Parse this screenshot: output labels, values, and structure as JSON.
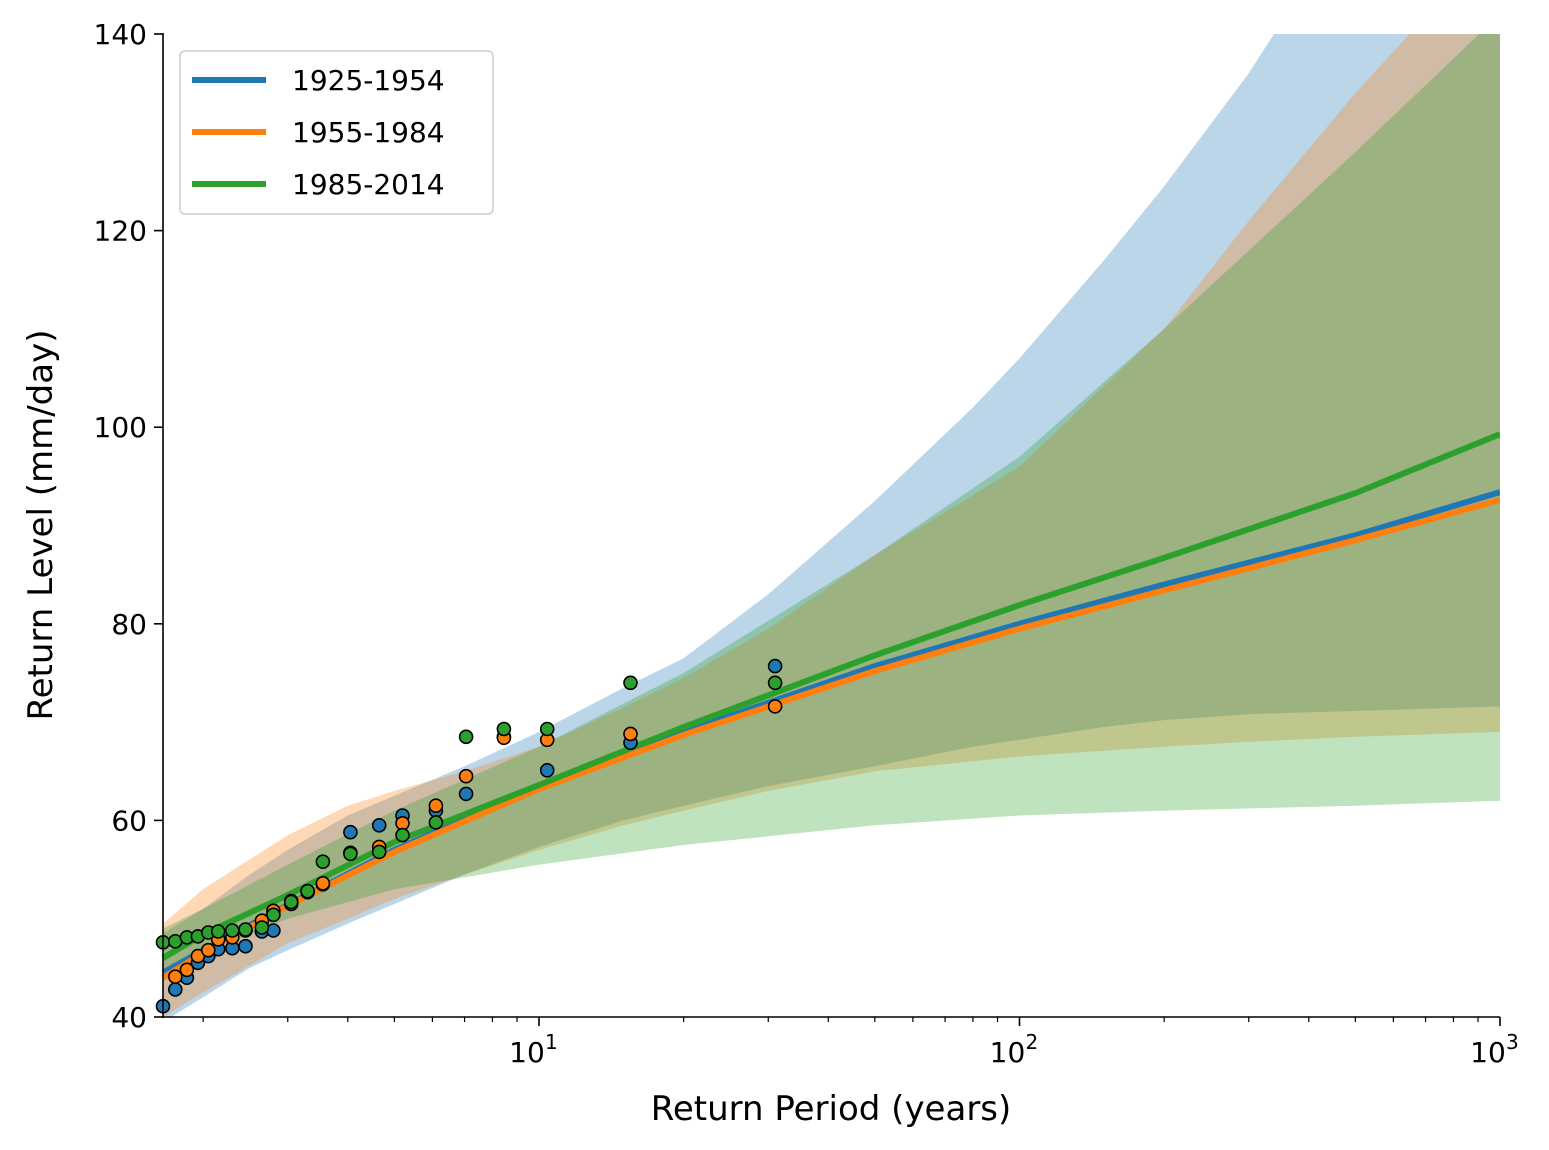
{
  "chart_data": {
    "type": "line",
    "title": "",
    "xlabel": "Return Period (years)",
    "ylabel": "Return Level (mm/day)",
    "xscale": "log",
    "xlim": [
      1.65,
      1000
    ],
    "ylim": [
      40,
      140
    ],
    "grid": false,
    "legend_position": "top-left",
    "y_ticks": [
      "40",
      "60",
      "80",
      "100",
      "120",
      "140"
    ],
    "x_ticks": [
      {
        "value": 10,
        "base": "10",
        "exp": "1"
      },
      {
        "value": 100,
        "base": "10",
        "exp": "2"
      },
      {
        "value": 1000,
        "base": "10",
        "exp": "3"
      }
    ],
    "series": [
      {
        "name": "1925-1954",
        "color": "#1f77b4",
        "fit": {
          "x": [
            1.65,
            2,
            3,
            5,
            10,
            20,
            50,
            100,
            200,
            500,
            1000
          ],
          "y": [
            44.5,
            46.8,
            51.4,
            57.0,
            63.4,
            69.0,
            75.7,
            80.0,
            84.0,
            89.0,
            93.4
          ]
        },
        "band": {
          "x": [
            1.65,
            2,
            2.5,
            3,
            4,
            5,
            7,
            10,
            15,
            20,
            30,
            50,
            80,
            100,
            150,
            200,
            300,
            1000
          ],
          "lower": [
            39.5,
            42.0,
            45.0,
            46.8,
            49.5,
            51.5,
            54.5,
            57.3,
            60.0,
            61.5,
            63.5,
            65.5,
            67.5,
            68.2,
            69.5,
            70.2,
            70.8,
            71.6
          ],
          "upper": [
            48.5,
            51.0,
            54.5,
            57.0,
            60.5,
            62.5,
            65.5,
            69.0,
            73.5,
            76.5,
            83.0,
            92.5,
            102.0,
            107.0,
            117.0,
            124.5,
            136.0,
            176.0
          ]
        },
        "points": {
          "x": [
            1.65,
            1.75,
            1.85,
            1.95,
            2.05,
            2.15,
            2.3,
            2.45,
            2.65,
            2.8,
            3.05,
            3.3,
            3.55,
            4.05,
            4.65,
            5.2,
            6.1,
            7.05,
            8.45,
            10.4,
            15.5,
            31.0
          ],
          "y": [
            41.1,
            42.8,
            44.0,
            45.5,
            46.2,
            46.9,
            47.0,
            47.2,
            48.7,
            48.8,
            51.5,
            52.7,
            53.5,
            58.8,
            59.5,
            60.5,
            61.0,
            62.7,
            68.5,
            65.1,
            67.9,
            75.7
          ]
        }
      },
      {
        "name": "1955-1984",
        "color": "#ff7f0e",
        "fit": {
          "x": [
            1.65,
            2,
            3,
            5,
            10,
            20,
            50,
            100,
            200,
            500,
            1000
          ],
          "y": [
            44.0,
            46.5,
            51.3,
            56.8,
            63.2,
            68.7,
            75.2,
            79.5,
            83.4,
            88.5,
            92.6
          ]
        },
        "band": {
          "x": [
            1.65,
            2,
            3,
            4,
            5,
            7,
            10,
            15,
            20,
            30,
            50,
            100,
            200,
            300,
            500,
            1000
          ],
          "lower": [
            40.0,
            42.5,
            47.5,
            50.0,
            52.0,
            54.5,
            57.0,
            59.5,
            61.0,
            63.0,
            65.0,
            66.5,
            67.5,
            68.0,
            68.5,
            69.0
          ],
          "upper": [
            49.5,
            53.0,
            58.5,
            61.5,
            63.0,
            65.0,
            67.5,
            71.5,
            74.5,
            79.5,
            87.0,
            96.0,
            110.0,
            121.0,
            134.0,
            150.0
          ]
        },
        "points": {
          "x": [
            1.75,
            1.85,
            1.95,
            2.05,
            2.15,
            2.3,
            2.45,
            2.65,
            2.8,
            3.05,
            3.3,
            3.55,
            4.05,
            4.65,
            5.2,
            6.1,
            7.05,
            8.45,
            10.4,
            15.5,
            31.0
          ],
          "y": [
            44.1,
            44.8,
            46.2,
            46.8,
            47.9,
            48.1,
            48.8,
            49.8,
            50.8,
            51.8,
            52.8,
            53.6,
            56.7,
            57.3,
            59.7,
            61.5,
            64.5,
            68.4,
            68.2,
            68.8,
            71.6
          ]
        }
      },
      {
        "name": "1985-2014",
        "color": "#2ca02c",
        "fit": {
          "x": [
            1.65,
            2,
            3,
            5,
            10,
            20,
            50,
            100,
            200,
            500,
            1000
          ],
          "y": [
            46.0,
            48.4,
            52.4,
            57.8,
            63.6,
            69.5,
            76.8,
            81.9,
            86.7,
            93.3,
            99.3
          ]
        },
        "band": {
          "x": [
            1.65,
            2,
            3,
            5,
            10,
            20,
            50,
            100,
            200,
            500,
            1000
          ],
          "lower": [
            44.5,
            46.5,
            50.0,
            53.0,
            55.5,
            57.5,
            59.5,
            60.5,
            61.0,
            61.5,
            62.0
          ],
          "upper": [
            49.0,
            51.0,
            55.5,
            61.0,
            67.5,
            75.0,
            87.0,
            97.0,
            110.0,
            128.0,
            142.0
          ]
        },
        "points": {
          "x": [
            1.65,
            1.75,
            1.85,
            1.95,
            2.05,
            2.15,
            2.3,
            2.45,
            2.65,
            2.8,
            3.05,
            3.3,
            3.55,
            4.05,
            4.65,
            5.2,
            6.1,
            7.05,
            8.45,
            10.4,
            15.5,
            31.0
          ],
          "y": [
            47.6,
            47.7,
            48.1,
            48.2,
            48.6,
            48.7,
            48.8,
            48.9,
            49.1,
            50.4,
            51.7,
            52.8,
            55.8,
            56.6,
            56.8,
            58.5,
            59.8,
            68.5,
            69.3,
            69.3,
            74.0,
            74.0
          ]
        }
      }
    ]
  }
}
